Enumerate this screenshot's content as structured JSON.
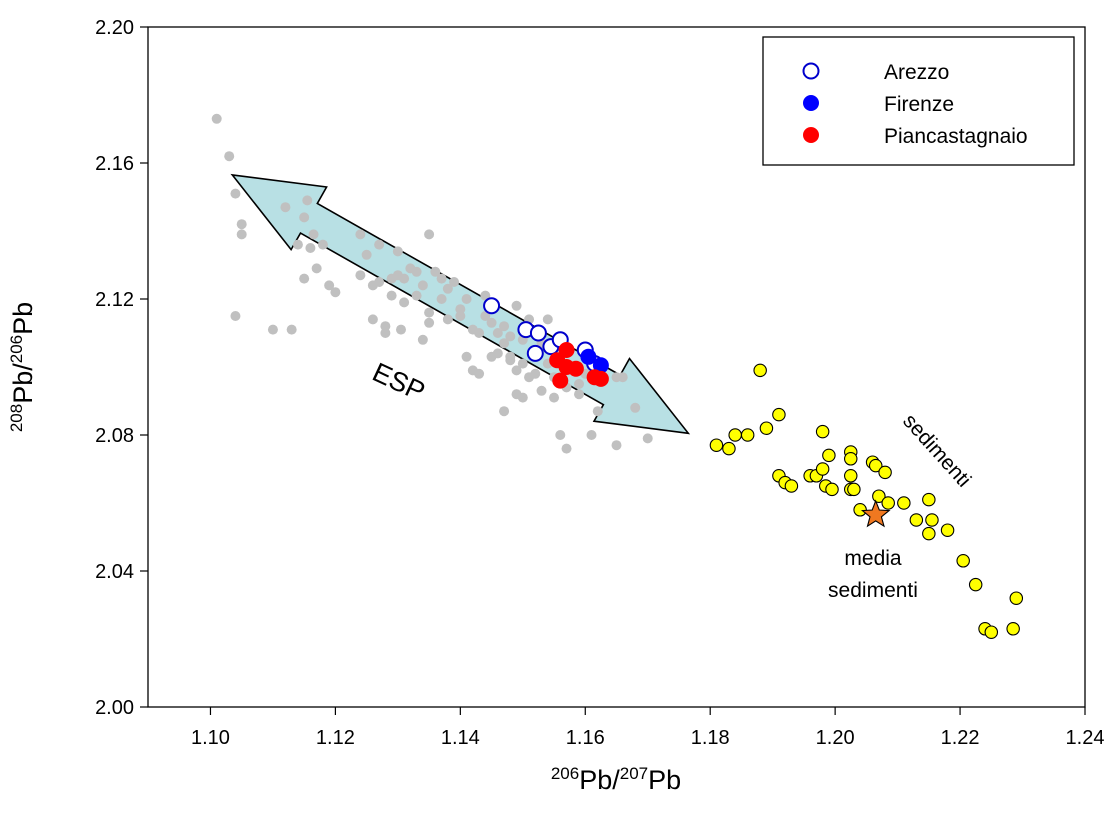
{
  "chart_data": {
    "type": "scatter",
    "xlim": [
      1.09,
      1.24
    ],
    "ylim": [
      2.0,
      2.2
    ],
    "x_ticks": [
      "1.10",
      "1.12",
      "1.14",
      "1.16",
      "1.18",
      "1.20",
      "1.22",
      "1.24"
    ],
    "y_ticks": [
      "2.00",
      "2.04",
      "2.08",
      "2.12",
      "2.16",
      "2.20"
    ],
    "xlabel": {
      "sup1": "206",
      "base1": "Pb/",
      "sup2": "207",
      "base2": "Pb"
    },
    "ylabel": {
      "sup1": "208",
      "base1": "Pb/",
      "sup2": "206",
      "base2": "Pb"
    },
    "grid": false,
    "legend_position": "top-right",
    "legend": [
      {
        "label": "Arezzo",
        "marker": "open-circle",
        "color": "#0000cc"
      },
      {
        "label": "Firenze",
        "marker": "filled-circle",
        "color": "#0000ff"
      },
      {
        "label": "Piancastagnaio",
        "marker": "filled-circle",
        "color": "#ff0000"
      }
    ],
    "annotations": {
      "esp": "ESP",
      "sedimenti": "sedimenti",
      "media_line1": "media",
      "media_line2": "sedimenti"
    },
    "esp_arrow": {
      "fill": "#b8e0e4",
      "tail": [
        1.1035,
        2.1565
      ],
      "head": [
        1.1765,
        2.0805
      ]
    },
    "series": [
      {
        "name": "Arezzo",
        "marker": "open-circle",
        "color": "#0000cc",
        "points": [
          [
            1.145,
            2.118
          ],
          [
            1.1505,
            2.111
          ],
          [
            1.1525,
            2.11
          ],
          [
            1.1545,
            2.106
          ],
          [
            1.152,
            2.104
          ],
          [
            1.156,
            2.108
          ],
          [
            1.16,
            2.105
          ],
          [
            1.1615,
            2.101
          ]
        ]
      },
      {
        "name": "Firenze",
        "marker": "filled-circle",
        "color": "#0000ff",
        "points": [
          [
            1.1605,
            2.103
          ],
          [
            1.1625,
            2.1005
          ]
        ]
      },
      {
        "name": "Piancastagnaio",
        "marker": "filled-circle",
        "color": "#ff0000",
        "points": [
          [
            1.1555,
            2.102
          ],
          [
            1.157,
            2.105
          ],
          [
            1.157,
            2.1
          ],
          [
            1.1585,
            2.0995
          ],
          [
            1.156,
            2.096
          ],
          [
            1.1615,
            2.097
          ],
          [
            1.1625,
            2.0965
          ]
        ]
      },
      {
        "name": "",
        "marker": "gray-dot",
        "color": "#c0c0c0",
        "points": [
          [
            1.101,
            2.173
          ],
          [
            1.103,
            2.162
          ],
          [
            1.104,
            2.151
          ],
          [
            1.105,
            2.142
          ],
          [
            1.105,
            2.139
          ],
          [
            1.104,
            2.115
          ],
          [
            1.11,
            2.111
          ],
          [
            1.113,
            2.111
          ],
          [
            1.112,
            2.147
          ],
          [
            1.114,
            2.136
          ],
          [
            1.115,
            2.144
          ],
          [
            1.1155,
            2.149
          ],
          [
            1.1165,
            2.139
          ],
          [
            1.117,
            2.129
          ],
          [
            1.118,
            2.136
          ],
          [
            1.119,
            2.124
          ],
          [
            1.12,
            2.122
          ],
          [
            1.115,
            2.126
          ],
          [
            1.116,
            2.135
          ],
          [
            1.124,
            2.139
          ],
          [
            1.124,
            2.127
          ],
          [
            1.125,
            2.133
          ],
          [
            1.126,
            2.124
          ],
          [
            1.126,
            2.114
          ],
          [
            1.127,
            2.136
          ],
          [
            1.127,
            2.125
          ],
          [
            1.128,
            2.112
          ],
          [
            1.128,
            2.11
          ],
          [
            1.129,
            2.121
          ],
          [
            1.129,
            2.126
          ],
          [
            1.13,
            2.127
          ],
          [
            1.13,
            2.134
          ],
          [
            1.1305,
            2.111
          ],
          [
            1.131,
            2.126
          ],
          [
            1.131,
            2.119
          ],
          [
            1.132,
            2.129
          ],
          [
            1.133,
            2.121
          ],
          [
            1.133,
            2.128
          ],
          [
            1.134,
            2.124
          ],
          [
            1.134,
            2.108
          ],
          [
            1.135,
            2.116
          ],
          [
            1.135,
            2.139
          ],
          [
            1.135,
            2.113
          ],
          [
            1.136,
            2.128
          ],
          [
            1.137,
            2.126
          ],
          [
            1.137,
            2.12
          ],
          [
            1.138,
            2.123
          ],
          [
            1.138,
            2.114
          ],
          [
            1.139,
            2.125
          ],
          [
            1.14,
            2.117
          ],
          [
            1.14,
            2.115
          ],
          [
            1.141,
            2.12
          ],
          [
            1.142,
            2.111
          ],
          [
            1.142,
            2.099
          ],
          [
            1.143,
            2.11
          ],
          [
            1.143,
            2.098
          ],
          [
            1.144,
            2.115
          ],
          [
            1.144,
            2.121
          ],
          [
            1.145,
            2.113
          ],
          [
            1.145,
            2.103
          ],
          [
            1.146,
            2.11
          ],
          [
            1.146,
            2.104
          ],
          [
            1.147,
            2.107
          ],
          [
            1.147,
            2.087
          ],
          [
            1.148,
            2.109
          ],
          [
            1.148,
            2.103
          ],
          [
            1.149,
            2.099
          ],
          [
            1.149,
            2.118
          ],
          [
            1.149,
            2.092
          ],
          [
            1.15,
            2.108
          ],
          [
            1.15,
            2.101
          ],
          [
            1.15,
            2.091
          ],
          [
            1.151,
            2.097
          ],
          [
            1.151,
            2.114
          ],
          [
            1.152,
            2.103
          ],
          [
            1.152,
            2.098
          ],
          [
            1.153,
            2.093
          ],
          [
            1.154,
            2.114
          ],
          [
            1.154,
            2.101
          ],
          [
            1.155,
            2.091
          ],
          [
            1.155,
            2.097
          ],
          [
            1.156,
            2.103
          ],
          [
            1.156,
            2.08
          ],
          [
            1.157,
            2.076
          ],
          [
            1.157,
            2.094
          ],
          [
            1.159,
            2.095
          ],
          [
            1.159,
            2.092
          ],
          [
            1.16,
            2.098
          ],
          [
            1.161,
            2.08
          ],
          [
            1.162,
            2.087
          ],
          [
            1.162,
            2.098
          ],
          [
            1.165,
            2.077
          ],
          [
            1.165,
            2.097
          ],
          [
            1.166,
            2.097
          ],
          [
            1.168,
            2.088
          ],
          [
            1.17,
            2.079
          ],
          [
            1.148,
            2.102
          ],
          [
            1.153,
            2.107
          ],
          [
            1.147,
            2.112
          ],
          [
            1.141,
            2.103
          ]
        ]
      },
      {
        "name": "",
        "marker": "yellow-circle",
        "color": "#ffff00",
        "points": [
          [
            1.181,
            2.077
          ],
          [
            1.183,
            2.076
          ],
          [
            1.184,
            2.08
          ],
          [
            1.186,
            2.08
          ],
          [
            1.188,
            2.099
          ],
          [
            1.189,
            2.082
          ],
          [
            1.191,
            2.086
          ],
          [
            1.191,
            2.068
          ],
          [
            1.192,
            2.066
          ],
          [
            1.193,
            2.065
          ],
          [
            1.196,
            2.068
          ],
          [
            1.197,
            2.068
          ],
          [
            1.198,
            2.07
          ],
          [
            1.198,
            2.081
          ],
          [
            1.1985,
            2.065
          ],
          [
            1.199,
            2.074
          ],
          [
            1.1995,
            2.064
          ],
          [
            1.2025,
            2.075
          ],
          [
            1.2025,
            2.073
          ],
          [
            1.2025,
            2.068
          ],
          [
            1.2025,
            2.064
          ],
          [
            1.203,
            2.064
          ],
          [
            1.204,
            2.058
          ],
          [
            1.206,
            2.072
          ],
          [
            1.2065,
            2.071
          ],
          [
            1.207,
            2.062
          ],
          [
            1.208,
            2.069
          ],
          [
            1.2085,
            2.06
          ],
          [
            1.211,
            2.06
          ],
          [
            1.213,
            2.055
          ],
          [
            1.215,
            2.061
          ],
          [
            1.215,
            2.051
          ],
          [
            1.2155,
            2.055
          ],
          [
            1.218,
            2.052
          ],
          [
            1.2205,
            2.043
          ],
          [
            1.2225,
            2.036
          ],
          [
            1.224,
            2.023
          ],
          [
            1.225,
            2.022
          ],
          [
            1.2285,
            2.023
          ],
          [
            1.229,
            2.032
          ]
        ]
      },
      {
        "name": "",
        "marker": "star",
        "color": "#f07820",
        "points": [
          [
            1.2065,
            2.0565
          ]
        ]
      }
    ]
  }
}
